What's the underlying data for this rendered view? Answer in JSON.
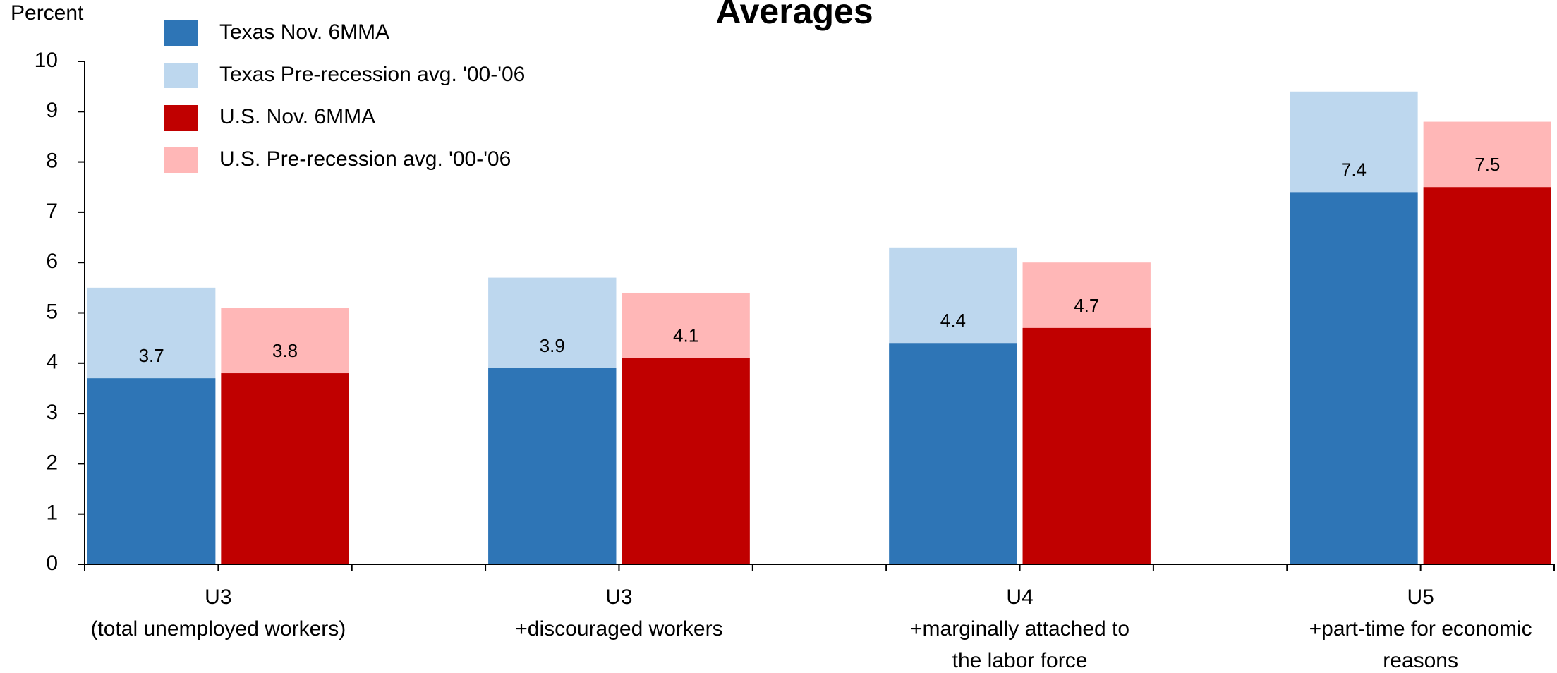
{
  "chart_data": {
    "type": "bar",
    "title": "Averages",
    "y_label": "Percent",
    "categories": [
      [
        "U3",
        "(total unemployed workers)"
      ],
      [
        "U3",
        "+discouraged workers"
      ],
      [
        "U4",
        "+marginally attached to",
        "the labor force"
      ],
      [
        "U5",
        "+part-time for economic",
        "reasons"
      ]
    ],
    "series": [
      {
        "name": "Texas Nov. 6MMA",
        "color": "#2e75b6",
        "values": [
          3.7,
          3.9,
          4.4,
          7.4
        ],
        "group": "texas"
      },
      {
        "name": "Texas Pre-recession avg. '00-'06",
        "color": "#bdd7ee",
        "values": [
          5.5,
          5.7,
          6.3,
          9.4
        ],
        "group": "texas"
      },
      {
        "name": "U.S.    Nov. 6MMA",
        "color": "#c00000",
        "values": [
          3.8,
          4.1,
          4.7,
          7.5
        ],
        "group": "us"
      },
      {
        "name": "U.S.    Pre-recession avg. '00-'06",
        "color": "#ffb7b7",
        "values": [
          5.1,
          5.4,
          6.0,
          8.8
        ],
        "group": "us"
      }
    ],
    "ylim": [
      0,
      10
    ],
    "yticks": [
      0,
      1,
      2,
      3,
      4,
      5,
      6,
      7,
      8,
      9,
      10
    ],
    "grid": false
  }
}
